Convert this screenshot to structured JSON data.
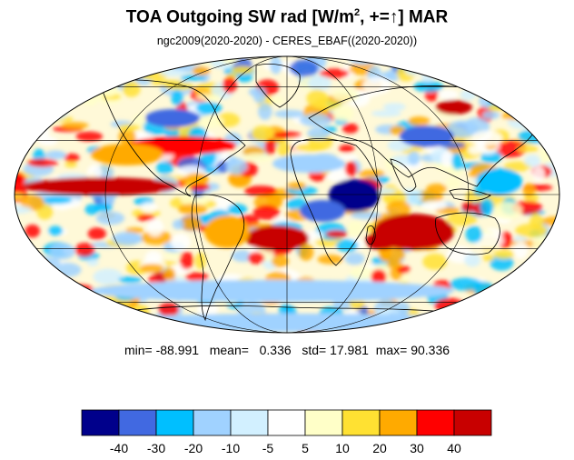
{
  "title": {
    "main": "TOA Outgoing SW rad [W/m",
    "sup": "2",
    "rest": ", +=↑] MAR"
  },
  "subtitle": "ngc2009(2020-2020) - CERES_EBAF((2020-2020))",
  "stats": {
    "min_label": "min=",
    "min": "-88.991",
    "mean_label": "mean=",
    "mean": "0.336",
    "std_label": "std=",
    "std": "17.981",
    "max_label": "max=",
    "max": "90.336"
  },
  "colorbar": {
    "levels": [
      "-40",
      "-30",
      "-20",
      "-10",
      "-5",
      "5",
      "10",
      "20",
      "30",
      "40"
    ],
    "colors": [
      "#00008b",
      "#4169e1",
      "#00bfff",
      "#a0d2ff",
      "#d2f0ff",
      "#ffffff",
      "#ffffc8",
      "#ffe132",
      "#ffaa00",
      "#ff0000",
      "#c80000"
    ]
  },
  "map": {
    "projection": "mollweide",
    "regions": [
      {
        "name": "equatorial-pacific-positive",
        "value": 35
      },
      {
        "name": "south-atlantic-positive",
        "value": 40
      },
      {
        "name": "australia-positive",
        "value": 40
      },
      {
        "name": "west-indian-ocean-negative",
        "value": -40
      },
      {
        "name": "equatorial-africa-negative",
        "value": -30
      },
      {
        "name": "southern-ocean-negative",
        "value": -15
      },
      {
        "name": "north-pacific-negative",
        "value": -25
      }
    ]
  }
}
